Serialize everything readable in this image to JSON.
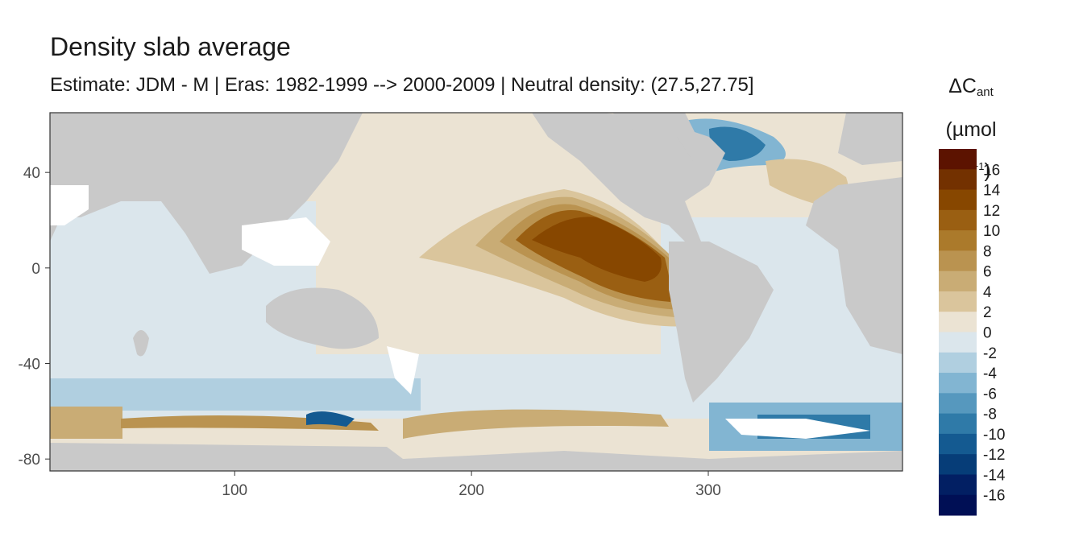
{
  "chart_data": {
    "type": "heatmap",
    "title": "Density slab average",
    "subtitle": "Estimate: JDM - M | Eras: 1982-1999 --> 2000-2009 | Neutral density: (27.5,27.75]",
    "xlabel": "",
    "ylabel": "",
    "xlim": [
      22,
      382
    ],
    "ylim": [
      -85,
      65
    ],
    "x_ticks": [
      100,
      200,
      300
    ],
    "y_ticks": [
      40,
      0,
      -40,
      -80
    ],
    "grid": false,
    "legend": {
      "title_main": "ΔC",
      "title_sub": "ant",
      "unit_main": "(µmol kg",
      "unit_sup": "−1",
      "unit_end": ")",
      "placement": "right",
      "labels": [
        "16",
        "14",
        "12",
        "10",
        "8",
        "6",
        "4",
        "2",
        "0",
        "-2",
        "-4",
        "-6",
        "-8",
        "-10",
        "-12",
        "-14",
        "-16"
      ],
      "bin_colors": [
        "#5c1300",
        "#733100",
        "#874700",
        "#9a5f12",
        "#ab7a2b",
        "#ba9350",
        "#c9ac75",
        "#dac59c",
        "#ebe3d3",
        "#dbe6ec",
        "#b0cfe0",
        "#82b5d2",
        "#5698be",
        "#2f7aa8",
        "#145a91",
        "#063d78",
        "#021f63",
        "#000f55"
      ]
    },
    "regions": [
      {
        "name": "land",
        "color": "#c9c9c9"
      },
      {
        "name": "no-data",
        "color": "#ffffff"
      }
    ]
  },
  "colors": {
    "land": "#c9c9c9",
    "panel_border": "#333333",
    "tick_text": "#4d4d4d"
  }
}
